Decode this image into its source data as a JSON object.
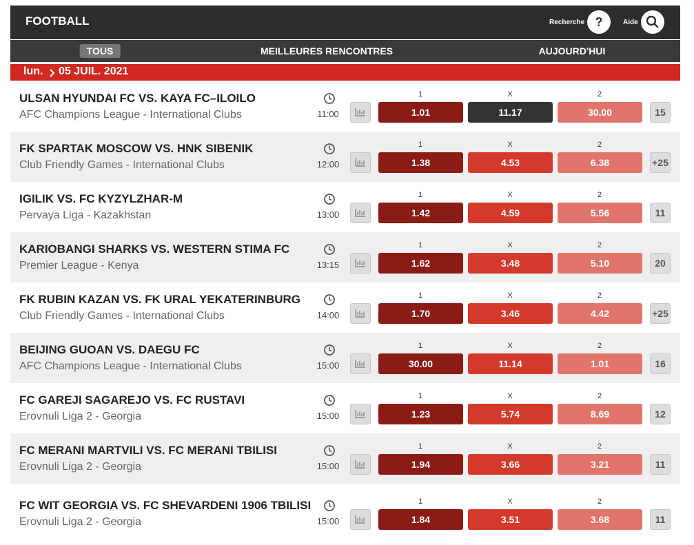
{
  "header": {
    "title": "FOOTBALL",
    "search_label": "Recherche",
    "help_icon": "?",
    "help_label": "Aide"
  },
  "nav": {
    "tabs": [
      "TOUS",
      "MEILLEURES RENCONTRES",
      "AUJOURD'HUI"
    ]
  },
  "date_bar": {
    "day": "lun.",
    "date": "05 JUIL. 2021"
  },
  "odds_headers": [
    "1",
    "X",
    "2"
  ],
  "matches": [
    {
      "title": "ULSAN HYUNDAI FC VS. KAYA FC–ILOILO",
      "league": "AFC Champions League - International Clubs",
      "time": "11:00",
      "odds": [
        "1.01",
        "11.17",
        "30.00"
      ],
      "more": "15"
    },
    {
      "title": "FK SPARTAK MOSCOW VS. HNK SIBENIK",
      "league": "Club Friendly Games - International Clubs",
      "time": "12:00",
      "odds": [
        "1.38",
        "4.53",
        "6.38"
      ],
      "more": "+25"
    },
    {
      "title": "IGILIK VS. FC KYZYLZHAR-M",
      "league": "Pervaya Liga - Kazakhstan",
      "time": "13:00",
      "odds": [
        "1.42",
        "4.59",
        "5.56"
      ],
      "more": "11"
    },
    {
      "title": "KARIOBANGI SHARKS VS. WESTERN STIMA FC",
      "league": "Premier League - Kenya",
      "time": "13:15",
      "odds": [
        "1.62",
        "3.48",
        "5.10"
      ],
      "more": "20"
    },
    {
      "title": "FK RUBIN KAZAN VS. FK URAL YEKATERINBURG",
      "league": "Club Friendly Games - International Clubs",
      "time": "14:00",
      "odds": [
        "1.70",
        "3.46",
        "4.42"
      ],
      "more": "+25"
    },
    {
      "title": "BEIJING GUOAN VS. DAEGU FC",
      "league": "AFC Champions League - International Clubs",
      "time": "15:00",
      "odds": [
        "30.00",
        "11.14",
        "1.01"
      ],
      "more": "16"
    },
    {
      "title": "FC GAREJI SAGAREJO VS. FC RUSTAVI",
      "league": "Erovnuli Liga 2 - Georgia",
      "time": "15:00",
      "odds": [
        "1.23",
        "5.74",
        "8.69"
      ],
      "more": "12"
    },
    {
      "title": "FC MERANI MARTVILI VS. FC MERANI TBILISI",
      "league": "Erovnuli Liga 2 - Georgia",
      "time": "15:00",
      "odds": [
        "1.94",
        "3.66",
        "3.21"
      ],
      "more": "11"
    },
    {
      "title": "FC WIT GEORGIA VS. FC SHEVARDENI 1906 TBILISI",
      "league": "Erovnuli Liga 2 - Georgia",
      "time": "15:00",
      "odds": [
        "1.84",
        "3.51",
        "3.68"
      ],
      "more": "11"
    }
  ]
}
